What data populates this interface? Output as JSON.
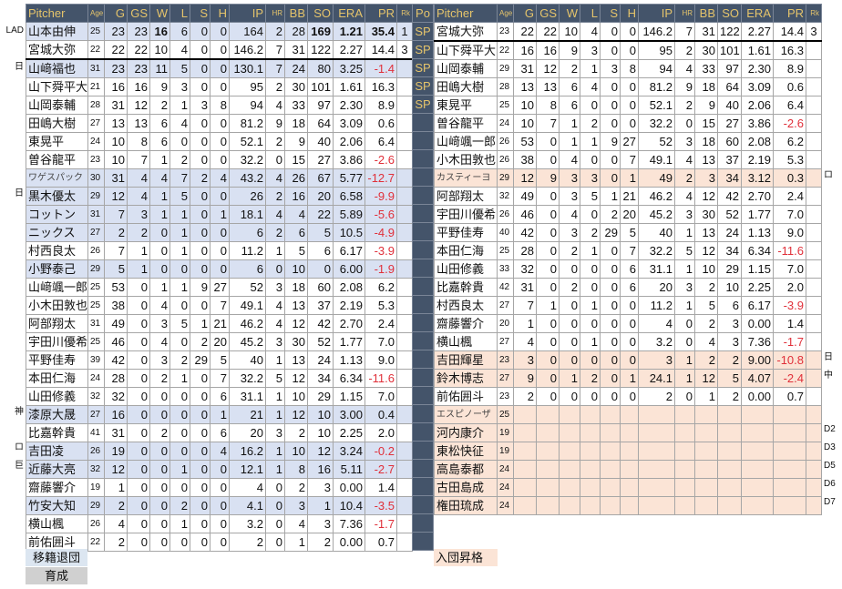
{
  "headers": [
    "Pitcher",
    "Age",
    "G",
    "GS",
    "W",
    "L",
    "S",
    "H",
    "IP",
    "HR",
    "BB",
    "SO",
    "ERA",
    "PR",
    "Rk"
  ],
  "po_header": "Po",
  "po_values": [
    "SP",
    "SP",
    "SP",
    "SP",
    "SP"
  ],
  "po_rows": 29,
  "left_rows": [
    {
      "c": [
        "山本由伸",
        "25",
        "23",
        "23",
        "16",
        "6",
        "0",
        "0",
        "164",
        "2",
        "28",
        "169",
        "1.21",
        "35.4",
        "1"
      ],
      "note": "LAD",
      "hl": true,
      "bold": [
        4,
        11,
        12,
        13
      ]
    },
    {
      "c": [
        "宮城大弥",
        "22",
        "22",
        "22",
        "10",
        "4",
        "0",
        "0",
        "146.2",
        "7",
        "31",
        "122",
        "2.27",
        "14.4",
        "3"
      ],
      "note": "",
      "sep": true
    },
    {
      "c": [
        "山﨑福也",
        "31",
        "23",
        "23",
        "11",
        "5",
        "0",
        "0",
        "130.1",
        "7",
        "24",
        "80",
        "3.25",
        "-1.4",
        ""
      ],
      "note": "日",
      "hl": true
    },
    {
      "c": [
        "山下舜平大",
        "21",
        "16",
        "16",
        "9",
        "3",
        "0",
        "0",
        "95",
        "2",
        "30",
        "101",
        "1.61",
        "16.3",
        ""
      ],
      "note": ""
    },
    {
      "c": [
        "山岡泰輔",
        "28",
        "31",
        "12",
        "2",
        "1",
        "3",
        "8",
        "94",
        "4",
        "33",
        "97",
        "2.30",
        "8.9",
        ""
      ],
      "note": ""
    },
    {
      "c": [
        "田嶋大樹",
        "27",
        "13",
        "13",
        "6",
        "4",
        "0",
        "0",
        "81.2",
        "9",
        "18",
        "64",
        "3.09",
        "0.6",
        ""
      ],
      "note": ""
    },
    {
      "c": [
        "東晃平",
        "24",
        "10",
        "8",
        "6",
        "0",
        "0",
        "0",
        "52.1",
        "2",
        "9",
        "40",
        "2.06",
        "6.4",
        ""
      ],
      "note": ""
    },
    {
      "c": [
        "曽谷龍平",
        "23",
        "10",
        "7",
        "1",
        "2",
        "0",
        "0",
        "32.2",
        "0",
        "15",
        "27",
        "3.86",
        "-2.6",
        ""
      ],
      "note": ""
    },
    {
      "c": [
        "ワゲスパック",
        "30",
        "31",
        "4",
        "4",
        "7",
        "2",
        "4",
        "43.2",
        "4",
        "26",
        "67",
        "5.77",
        "-12.7",
        ""
      ],
      "note": "",
      "hl": true,
      "kat": true
    },
    {
      "c": [
        "黒木優太",
        "29",
        "12",
        "4",
        "1",
        "5",
        "0",
        "0",
        "26",
        "2",
        "16",
        "20",
        "6.58",
        "-9.9",
        ""
      ],
      "note": "日",
      "hl": true
    },
    {
      "c": [
        "コットン",
        "31",
        "7",
        "3",
        "1",
        "1",
        "0",
        "1",
        "18.1",
        "4",
        "4",
        "22",
        "5.89",
        "-5.6",
        ""
      ],
      "note": "",
      "hl": true
    },
    {
      "c": [
        "ニックス",
        "27",
        "2",
        "2",
        "0",
        "1",
        "0",
        "0",
        "6",
        "2",
        "6",
        "5",
        "10.5",
        "-4.9",
        ""
      ],
      "note": "",
      "hl": true
    },
    {
      "c": [
        "村西良太",
        "26",
        "7",
        "1",
        "0",
        "1",
        "0",
        "0",
        "11.2",
        "1",
        "5",
        "6",
        "6.17",
        "-3.9",
        ""
      ],
      "note": ""
    },
    {
      "c": [
        "小野泰己",
        "29",
        "5",
        "1",
        "0",
        "0",
        "0",
        "0",
        "6",
        "0",
        "10",
        "0",
        "6.00",
        "-1.9",
        ""
      ],
      "note": "",
      "hl": true
    },
    {
      "c": [
        "山﨑颯一郎",
        "25",
        "53",
        "0",
        "1",
        "1",
        "9",
        "27",
        "52",
        "3",
        "18",
        "60",
        "2.08",
        "6.2",
        ""
      ],
      "note": ""
    },
    {
      "c": [
        "小木田敦也",
        "25",
        "38",
        "0",
        "4",
        "0",
        "0",
        "7",
        "49.1",
        "4",
        "13",
        "37",
        "2.19",
        "5.3",
        ""
      ],
      "note": ""
    },
    {
      "c": [
        "阿部翔太",
        "31",
        "49",
        "0",
        "3",
        "5",
        "1",
        "21",
        "46.2",
        "4",
        "12",
        "42",
        "2.70",
        "2.4",
        ""
      ],
      "note": ""
    },
    {
      "c": [
        "宇田川優希",
        "25",
        "46",
        "0",
        "4",
        "0",
        "2",
        "20",
        "45.2",
        "3",
        "30",
        "52",
        "1.77",
        "7.0",
        ""
      ],
      "note": ""
    },
    {
      "c": [
        "平野佳寿",
        "39",
        "42",
        "0",
        "3",
        "2",
        "29",
        "5",
        "40",
        "1",
        "13",
        "24",
        "1.13",
        "9.0",
        ""
      ],
      "note": ""
    },
    {
      "c": [
        "本田仁海",
        "24",
        "28",
        "0",
        "2",
        "1",
        "0",
        "7",
        "32.2",
        "5",
        "12",
        "34",
        "6.34",
        "-11.6",
        ""
      ],
      "note": ""
    },
    {
      "c": [
        "山田修義",
        "32",
        "32",
        "0",
        "0",
        "0",
        "0",
        "6",
        "31.1",
        "1",
        "10",
        "29",
        "1.15",
        "7.0",
        ""
      ],
      "note": ""
    },
    {
      "c": [
        "漆原大晟",
        "27",
        "16",
        "0",
        "0",
        "0",
        "0",
        "1",
        "21",
        "1",
        "12",
        "10",
        "3.00",
        "0.4",
        ""
      ],
      "note": "神",
      "hl": true
    },
    {
      "c": [
        "比嘉幹貴",
        "41",
        "31",
        "0",
        "2",
        "0",
        "0",
        "6",
        "20",
        "3",
        "2",
        "10",
        "2.25",
        "2.0",
        ""
      ],
      "note": ""
    },
    {
      "c": [
        "吉田凌",
        "26",
        "19",
        "0",
        "0",
        "0",
        "0",
        "4",
        "16.2",
        "1",
        "10",
        "12",
        "3.24",
        "-0.2",
        ""
      ],
      "note": "ロ",
      "hl": true
    },
    {
      "c": [
        "近藤大亮",
        "32",
        "12",
        "0",
        "0",
        "1",
        "0",
        "0",
        "12.1",
        "1",
        "8",
        "16",
        "5.11",
        "-2.7",
        ""
      ],
      "note": "巨",
      "hl": true
    },
    {
      "c": [
        "齋藤響介",
        "19",
        "1",
        "0",
        "0",
        "0",
        "0",
        "0",
        "4",
        "0",
        "2",
        "3",
        "0.00",
        "1.4",
        ""
      ],
      "note": ""
    },
    {
      "c": [
        "竹安大知",
        "29",
        "2",
        "0",
        "0",
        "2",
        "0",
        "0",
        "4.1",
        "0",
        "3",
        "1",
        "10.4",
        "-3.5",
        ""
      ],
      "note": "",
      "hl": true
    },
    {
      "c": [
        "横山楓",
        "26",
        "4",
        "0",
        "0",
        "1",
        "0",
        "0",
        "3.2",
        "0",
        "4",
        "3",
        "7.36",
        "-1.7",
        ""
      ],
      "note": ""
    },
    {
      "c": [
        "前佑囲斗",
        "22",
        "2",
        "0",
        "0",
        "0",
        "0",
        "0",
        "2",
        "0",
        "1",
        "2",
        "0.00",
        "0.7",
        ""
      ],
      "note": ""
    }
  ],
  "right_rows": [
    {
      "c": [
        "宮城大弥",
        "23",
        "22",
        "22",
        "10",
        "4",
        "0",
        "0",
        "146.2",
        "7",
        "31",
        "122",
        "2.27",
        "14.4",
        "3"
      ],
      "note": "",
      "sep": true
    },
    {
      "c": [
        "山下舜平大",
        "22",
        "16",
        "16",
        "9",
        "3",
        "0",
        "0",
        "95",
        "2",
        "30",
        "101",
        "1.61",
        "16.3",
        ""
      ],
      "note": ""
    },
    {
      "c": [
        "山岡泰輔",
        "29",
        "31",
        "12",
        "2",
        "1",
        "3",
        "8",
        "94",
        "4",
        "33",
        "97",
        "2.30",
        "8.9",
        ""
      ],
      "note": ""
    },
    {
      "c": [
        "田嶋大樹",
        "28",
        "13",
        "13",
        "6",
        "4",
        "0",
        "0",
        "81.2",
        "9",
        "18",
        "64",
        "3.09",
        "0.6",
        ""
      ],
      "note": ""
    },
    {
      "c": [
        "東晃平",
        "25",
        "10",
        "8",
        "6",
        "0",
        "0",
        "0",
        "52.1",
        "2",
        "9",
        "40",
        "2.06",
        "6.4",
        ""
      ],
      "note": ""
    },
    {
      "c": [
        "曽谷龍平",
        "24",
        "10",
        "7",
        "1",
        "2",
        "0",
        "0",
        "32.2",
        "0",
        "15",
        "27",
        "3.86",
        "-2.6",
        ""
      ],
      "note": ""
    },
    {
      "c": [
        "山﨑颯一郎",
        "26",
        "53",
        "0",
        "1",
        "1",
        "9",
        "27",
        "52",
        "3",
        "18",
        "60",
        "2.08",
        "6.2",
        ""
      ],
      "note": ""
    },
    {
      "c": [
        "小木田敦也",
        "26",
        "38",
        "0",
        "4",
        "0",
        "0",
        "7",
        "49.1",
        "4",
        "13",
        "37",
        "2.19",
        "5.3",
        ""
      ],
      "note": ""
    },
    {
      "c": [
        "カスティーヨ",
        "29",
        "12",
        "9",
        "3",
        "3",
        "0",
        "1",
        "49",
        "2",
        "3",
        "34",
        "3.12",
        "0.3",
        ""
      ],
      "note": "ロ",
      "pe": true,
      "kat": true
    },
    {
      "c": [
        "阿部翔太",
        "32",
        "49",
        "0",
        "3",
        "5",
        "1",
        "21",
        "46.2",
        "4",
        "12",
        "42",
        "2.70",
        "2.4",
        ""
      ],
      "note": ""
    },
    {
      "c": [
        "宇田川優希",
        "26",
        "46",
        "0",
        "4",
        "0",
        "2",
        "20",
        "45.2",
        "3",
        "30",
        "52",
        "1.77",
        "7.0",
        ""
      ],
      "note": ""
    },
    {
      "c": [
        "平野佳寿",
        "40",
        "42",
        "0",
        "3",
        "2",
        "29",
        "5",
        "40",
        "1",
        "13",
        "24",
        "1.13",
        "9.0",
        ""
      ],
      "note": ""
    },
    {
      "c": [
        "本田仁海",
        "25",
        "28",
        "0",
        "2",
        "1",
        "0",
        "7",
        "32.2",
        "5",
        "12",
        "34",
        "6.34",
        "-11.6",
        ""
      ],
      "note": ""
    },
    {
      "c": [
        "山田修義",
        "33",
        "32",
        "0",
        "0",
        "0",
        "0",
        "6",
        "31.1",
        "1",
        "10",
        "29",
        "1.15",
        "7.0",
        ""
      ],
      "note": ""
    },
    {
      "c": [
        "比嘉幹貴",
        "42",
        "31",
        "0",
        "2",
        "0",
        "0",
        "6",
        "20",
        "3",
        "2",
        "10",
        "2.25",
        "2.0",
        ""
      ],
      "note": ""
    },
    {
      "c": [
        "村西良太",
        "27",
        "7",
        "1",
        "0",
        "1",
        "0",
        "0",
        "11.2",
        "1",
        "5",
        "6",
        "6.17",
        "-3.9",
        ""
      ],
      "note": ""
    },
    {
      "c": [
        "齋藤響介",
        "20",
        "1",
        "0",
        "0",
        "0",
        "0",
        "0",
        "4",
        "0",
        "2",
        "3",
        "0.00",
        "1.4",
        ""
      ],
      "note": ""
    },
    {
      "c": [
        "横山楓",
        "27",
        "4",
        "0",
        "0",
        "1",
        "0",
        "0",
        "3.2",
        "0",
        "4",
        "3",
        "7.36",
        "-1.7",
        ""
      ],
      "note": ""
    },
    {
      "c": [
        "吉田輝星",
        "23",
        "3",
        "0",
        "0",
        "0",
        "0",
        "0",
        "3",
        "1",
        "2",
        "2",
        "9.00",
        "-10.8",
        ""
      ],
      "note": "日",
      "pe": true
    },
    {
      "c": [
        "鈴木博志",
        "27",
        "9",
        "0",
        "1",
        "2",
        "0",
        "1",
        "24.1",
        "1",
        "12",
        "5",
        "4.07",
        "-2.4",
        ""
      ],
      "note": "中",
      "pe": true
    },
    {
      "c": [
        "前佑囲斗",
        "23",
        "2",
        "0",
        "0",
        "0",
        "0",
        "0",
        "2",
        "0",
        "1",
        "2",
        "0.00",
        "0.7",
        ""
      ],
      "note": ""
    },
    {
      "c": [
        "エスピノーザ",
        "25",
        "",
        "",
        "",
        "",
        "",
        "",
        "",
        "",
        "",
        "",
        "",
        "",
        ""
      ],
      "note": "",
      "pe": true,
      "kat": true
    },
    {
      "c": [
        "河内康介",
        "19",
        "",
        "",
        "",
        "",
        "",
        "",
        "",
        "",
        "",
        "",
        "",
        "",
        ""
      ],
      "note": "D2",
      "pe": true
    },
    {
      "c": [
        "東松快征",
        "19",
        "",
        "",
        "",
        "",
        "",
        "",
        "",
        "",
        "",
        "",
        "",
        "",
        ""
      ],
      "note": "D3",
      "pe": true
    },
    {
      "c": [
        "高島泰都",
        "24",
        "",
        "",
        "",
        "",
        "",
        "",
        "",
        "",
        "",
        "",
        "",
        "",
        ""
      ],
      "note": "D5",
      "pe": true
    },
    {
      "c": [
        "古田島成",
        "24",
        "",
        "",
        "",
        "",
        "",
        "",
        "",
        "",
        "",
        "",
        "",
        "",
        ""
      ],
      "note": "D6",
      "pe": true
    },
    {
      "c": [
        "権田琉成",
        "24",
        "",
        "",
        "",
        "",
        "",
        "",
        "",
        "",
        "",
        "",
        "",
        "",
        ""
      ],
      "note": "D7",
      "pe": true
    }
  ],
  "footer": {
    "left_out": "移籍退団",
    "left_dev": "育成",
    "right_in": "入団昇格"
  },
  "colors": {
    "header_bg": "#44546a",
    "header_text": "#e5c46b",
    "highlight_blue": "#d9e1f2",
    "highlight_peach": "#fbe4d6",
    "negative": "#e0303a"
  }
}
